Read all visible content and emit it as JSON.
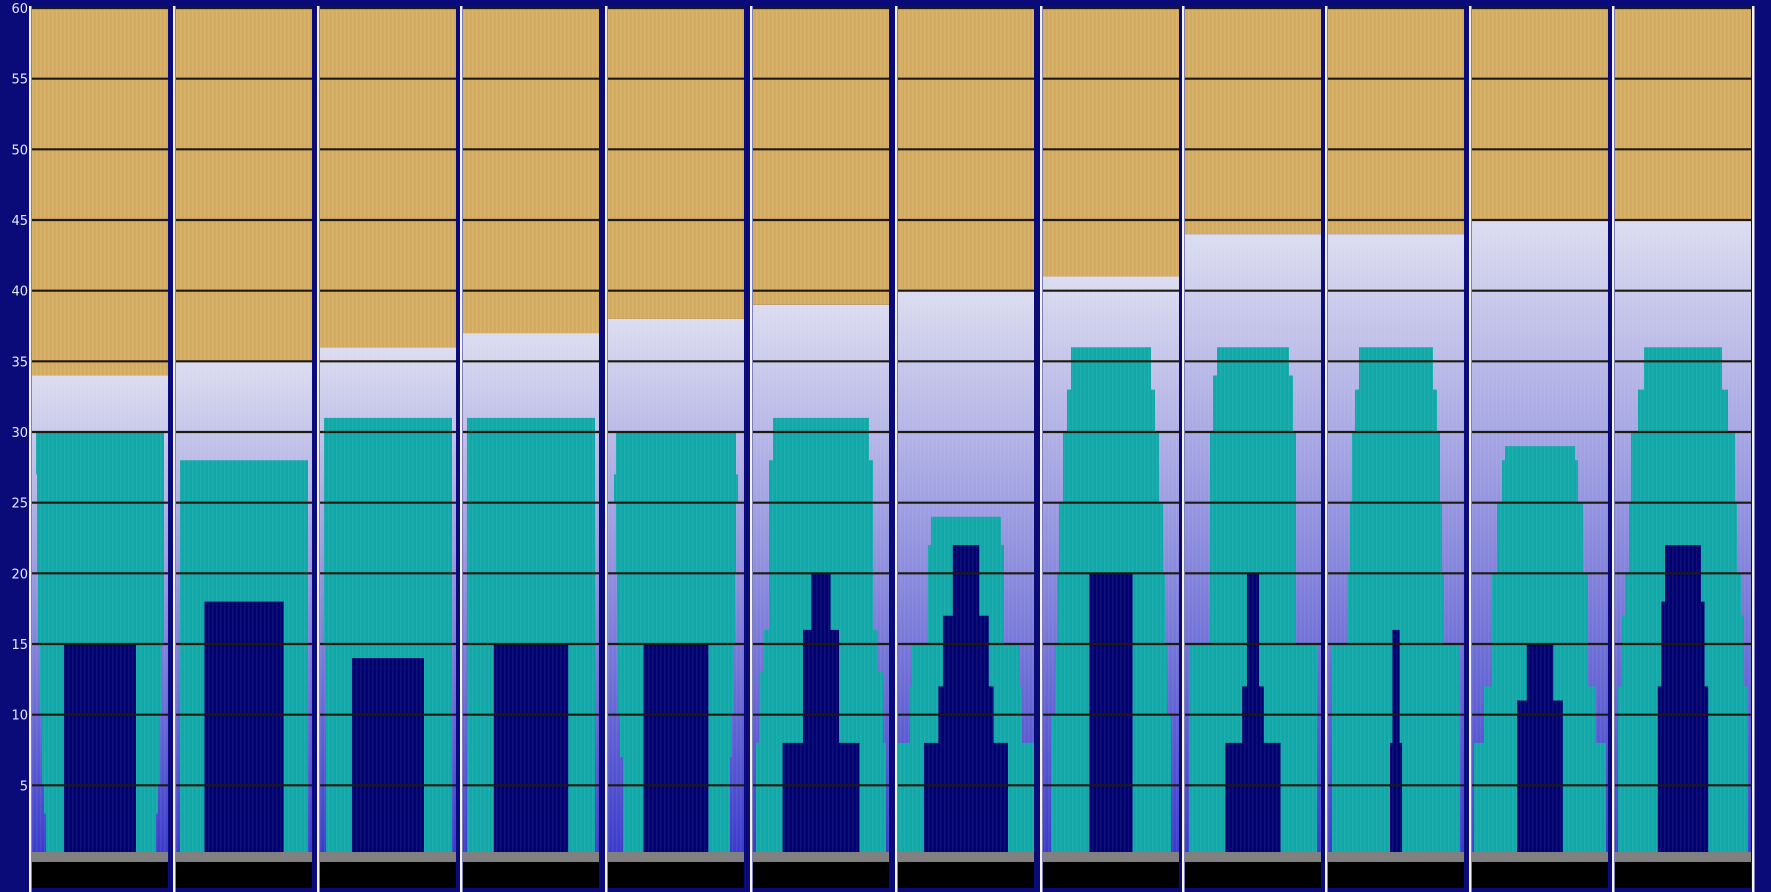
{
  "chart_data": {
    "type": "bar",
    "title": "",
    "xlabel": "",
    "ylabel": "",
    "ylim": [
      0,
      60
    ],
    "y_ticks": [
      "5",
      "10",
      "15",
      "20",
      "25",
      "30",
      "35",
      "40",
      "45",
      "50",
      "55",
      "60"
    ],
    "gridlines": true,
    "legend": "none",
    "colors": {
      "background": "#0a0a78",
      "top_band": "#d4aa5e",
      "gradient_top": "#dcdcf0",
      "gradient_bottom": "#3a3acc",
      "teal": "#10a8a8",
      "navy": "#000070",
      "base_gray": "#808080",
      "base_black": "#000000",
      "gridline": "#1e1a10"
    },
    "series": [
      {
        "role": "top-band-start",
        "values": [
          34,
          35,
          36,
          37,
          38,
          39,
          40,
          41,
          44,
          44,
          45,
          45
        ]
      },
      {
        "role": "teal-peak",
        "values": [
          30,
          28,
          31,
          31,
          30,
          31,
          24,
          36,
          36,
          36,
          29,
          36
        ]
      },
      {
        "role": "navy-peak",
        "values": [
          15,
          18,
          14,
          15,
          15,
          20,
          22,
          20,
          20,
          16,
          15,
          22
        ]
      }
    ],
    "columns": [
      {
        "band": 34,
        "teal": [
          [
            0,
            3,
            14,
            12
          ],
          [
            3,
            5,
            12,
            10
          ],
          [
            5,
            10,
            10,
            8
          ],
          [
            10,
            15,
            8,
            6
          ],
          [
            15,
            20,
            6,
            4
          ],
          [
            20,
            27,
            5,
            4
          ],
          [
            27,
            30,
            4,
            4
          ]
        ],
        "navy": [
          [
            0,
            10,
            5,
            5
          ],
          [
            10,
            15,
            5,
            5
          ]
        ]
      },
      {
        "band": 35,
        "teal": [
          [
            0,
            28,
            4,
            4
          ]
        ],
        "navy": [
          [
            0,
            8,
            2,
            2
          ],
          [
            8,
            13,
            2,
            2
          ],
          [
            13,
            18,
            2,
            2
          ]
        ]
      },
      {
        "band": 36,
        "teal": [
          [
            0,
            10,
            6,
            4
          ],
          [
            10,
            15,
            5,
            4
          ],
          [
            15,
            20,
            4,
            4
          ],
          [
            20,
            31,
            4,
            4
          ]
        ],
        "navy": [
          [
            0,
            14,
            5,
            5
          ]
        ]
      },
      {
        "band": 37,
        "teal": [
          [
            0,
            15,
            4,
            4
          ],
          [
            15,
            31,
            4,
            4
          ]
        ],
        "navy": [
          [
            0,
            15,
            4,
            4
          ]
        ]
      },
      {
        "band": 38,
        "teal": [
          [
            0,
            7,
            15,
            14
          ],
          [
            7,
            10,
            12,
            12
          ],
          [
            10,
            15,
            10,
            10
          ],
          [
            15,
            20,
            9,
            9
          ],
          [
            20,
            25,
            8,
            8
          ],
          [
            25,
            27,
            6,
            6
          ],
          [
            27,
            30,
            8,
            8
          ]
        ],
        "navy": [
          [
            0,
            15,
            8,
            8
          ]
        ]
      },
      {
        "band": 39,
        "teal": [
          [
            0,
            8,
            3,
            3
          ],
          [
            8,
            13,
            6,
            6
          ],
          [
            13,
            16,
            11,
            11
          ],
          [
            16,
            20,
            16,
            16
          ],
          [
            20,
            25,
            16,
            16
          ],
          [
            25,
            28,
            16,
            16
          ],
          [
            28,
            31,
            20,
            20
          ]
        ],
        "navy": [
          [
            0,
            8,
            3,
            3
          ],
          [
            8,
            16,
            20,
            20
          ],
          [
            16,
            20,
            27,
            27
          ]
        ]
      },
      {
        "band": 40,
        "teal": [
          [
            0,
            8,
            0,
            0
          ],
          [
            8,
            12,
            12,
            12
          ],
          [
            12,
            15,
            14,
            14
          ],
          [
            15,
            22,
            30,
            30
          ],
          [
            22,
            24,
            33,
            33
          ]
        ],
        "navy": [
          [
            0,
            8,
            0,
            0
          ],
          [
            8,
            12,
            12,
            12
          ],
          [
            12,
            17,
            16,
            16
          ],
          [
            17,
            22,
            24,
            24
          ]
        ]
      },
      {
        "band": 41,
        "teal": [
          [
            0,
            10,
            8,
            8
          ],
          [
            10,
            15,
            12,
            12
          ],
          [
            15,
            20,
            14,
            14
          ],
          [
            20,
            25,
            16,
            16
          ],
          [
            25,
            30,
            20,
            20
          ],
          [
            30,
            33,
            24,
            24
          ],
          [
            33,
            36,
            28,
            28
          ]
        ],
        "navy": [
          [
            0,
            8,
            17,
            17
          ],
          [
            8,
            20,
            17,
            17
          ]
        ]
      },
      {
        "band": 44,
        "teal": [
          [
            0,
            15,
            4,
            4
          ],
          [
            15,
            20,
            25,
            25
          ],
          [
            20,
            25,
            25,
            25
          ],
          [
            25,
            30,
            25,
            25
          ],
          [
            30,
            34,
            28,
            28
          ],
          [
            34,
            36,
            32,
            32
          ]
        ],
        "navy": [
          [
            0,
            8,
            12,
            12
          ],
          [
            8,
            12,
            26,
            26
          ],
          [
            12,
            20,
            30,
            30
          ]
        ]
      },
      {
        "band": 44,
        "teal": [
          [
            0,
            15,
            4,
            4
          ],
          [
            15,
            20,
            20,
            20
          ],
          [
            20,
            25,
            22,
            22
          ],
          [
            25,
            30,
            24,
            24
          ],
          [
            30,
            33,
            27,
            27
          ],
          [
            33,
            36,
            31,
            31
          ]
        ],
        "navy": [
          [
            0,
            8,
            30,
            30
          ],
          [
            8,
            16,
            32,
            32
          ]
        ]
      },
      {
        "band": 45,
        "teal": [
          [
            0,
            8,
            2,
            2
          ],
          [
            8,
            12,
            12,
            12
          ],
          [
            12,
            20,
            20,
            20
          ],
          [
            20,
            25,
            25,
            25
          ],
          [
            25,
            28,
            30,
            30
          ],
          [
            28,
            29,
            33,
            33
          ]
        ],
        "navy": [
          [
            0,
            11,
            16,
            16
          ],
          [
            11,
            15,
            24,
            24
          ]
        ]
      },
      {
        "band": 45,
        "teal": [
          [
            0,
            12,
            3,
            3
          ],
          [
            12,
            17,
            7,
            7
          ],
          [
            17,
            20,
            10,
            10
          ],
          [
            20,
            25,
            14,
            14
          ],
          [
            25,
            30,
            16,
            16
          ],
          [
            30,
            33,
            23,
            23
          ],
          [
            33,
            36,
            29,
            29
          ]
        ],
        "navy": [
          [
            0,
            12,
            14,
            14
          ],
          [
            12,
            18,
            17,
            17
          ],
          [
            18,
            22,
            20,
            20
          ]
        ]
      }
    ]
  }
}
